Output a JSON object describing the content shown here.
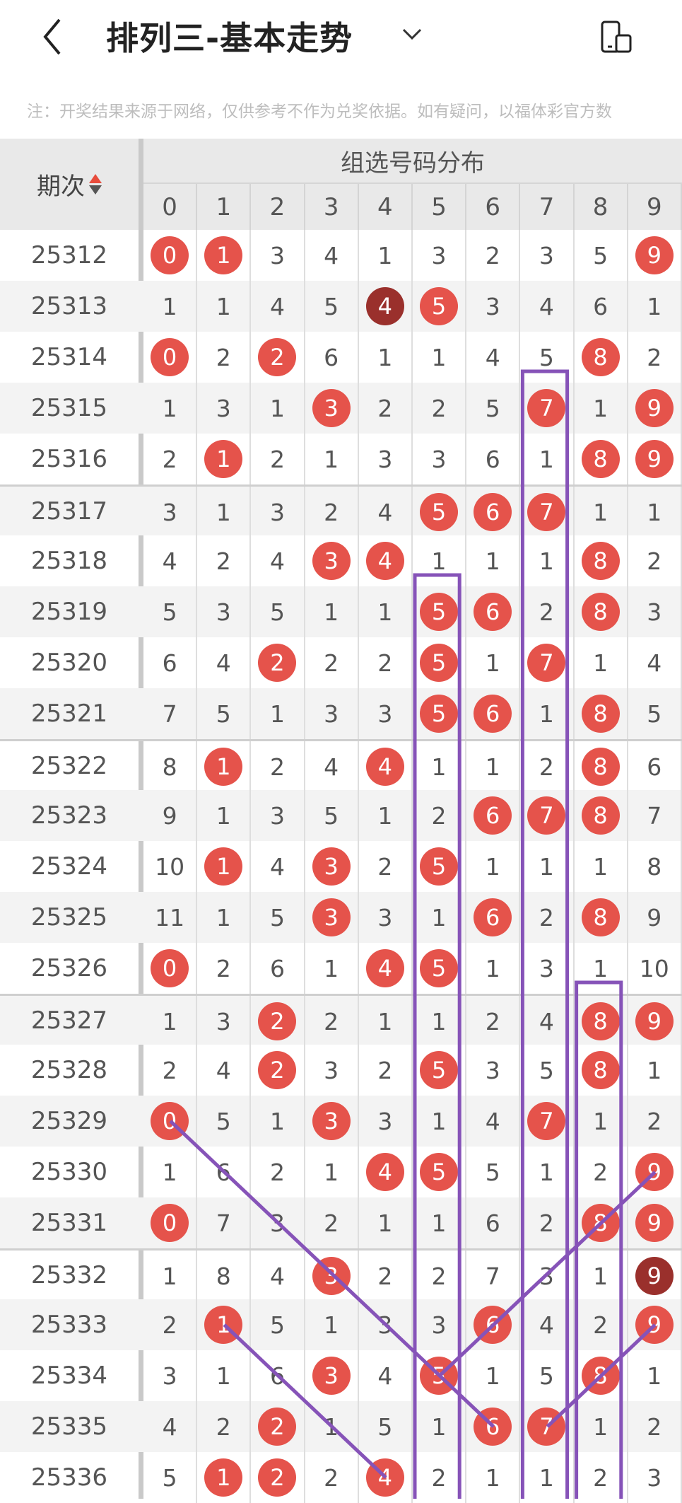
{
  "header": {
    "title": "排列三-基本走势",
    "back_icon": "chevron-left-icon",
    "dropdown_icon": "chevron-down-icon",
    "device_icon": "device-switch-icon"
  },
  "note": "注：开奖结果来源于网络，仅供参考不作为兑奖依据。如有疑问，以福体彩官方数",
  "table": {
    "issue_header": "期次",
    "group_header": "组选号码分布",
    "digits": [
      "0",
      "1",
      "2",
      "3",
      "4",
      "5",
      "6",
      "7",
      "8",
      "9"
    ],
    "rows": [
      {
        "issue": "25312",
        "cells": [
          "0",
          "1",
          "3",
          "4",
          "1",
          "3",
          "2",
          "3",
          "5",
          "9"
        ],
        "hits": [
          0,
          1,
          9
        ],
        "dark": []
      },
      {
        "issue": "25313",
        "cells": [
          "1",
          "1",
          "4",
          "5",
          "4",
          "5",
          "3",
          "4",
          "6",
          "1"
        ],
        "hits": [
          4,
          5
        ],
        "dark": [
          4
        ]
      },
      {
        "issue": "25314",
        "cells": [
          "0",
          "2",
          "2",
          "6",
          "1",
          "1",
          "4",
          "5",
          "8",
          "2"
        ],
        "hits": [
          0,
          2,
          8
        ],
        "dark": []
      },
      {
        "issue": "25315",
        "cells": [
          "1",
          "3",
          "1",
          "3",
          "2",
          "2",
          "5",
          "7",
          "1",
          "9"
        ],
        "hits": [
          3,
          7,
          9
        ],
        "dark": []
      },
      {
        "issue": "25316",
        "cells": [
          "2",
          "1",
          "2",
          "1",
          "3",
          "3",
          "6",
          "1",
          "8",
          "9"
        ],
        "hits": [
          1,
          8,
          9
        ],
        "dark": []
      },
      {
        "issue": "25317",
        "cells": [
          "3",
          "1",
          "3",
          "2",
          "4",
          "5",
          "6",
          "7",
          "1",
          "1"
        ],
        "hits": [
          5,
          6,
          7
        ],
        "dark": []
      },
      {
        "issue": "25318",
        "cells": [
          "4",
          "2",
          "4",
          "3",
          "4",
          "1",
          "1",
          "1",
          "8",
          "2"
        ],
        "hits": [
          3,
          4,
          8
        ],
        "dark": []
      },
      {
        "issue": "25319",
        "cells": [
          "5",
          "3",
          "5",
          "1",
          "1",
          "5",
          "6",
          "2",
          "8",
          "3"
        ],
        "hits": [
          5,
          6,
          8
        ],
        "dark": []
      },
      {
        "issue": "25320",
        "cells": [
          "6",
          "4",
          "2",
          "2",
          "2",
          "5",
          "1",
          "7",
          "1",
          "4"
        ],
        "hits": [
          2,
          5,
          7
        ],
        "dark": []
      },
      {
        "issue": "25321",
        "cells": [
          "7",
          "5",
          "1",
          "3",
          "3",
          "5",
          "6",
          "1",
          "8",
          "5"
        ],
        "hits": [
          5,
          6,
          8
        ],
        "dark": []
      },
      {
        "issue": "25322",
        "cells": [
          "8",
          "1",
          "2",
          "4",
          "4",
          "1",
          "1",
          "2",
          "8",
          "6"
        ],
        "hits": [
          1,
          4,
          8
        ],
        "dark": []
      },
      {
        "issue": "25323",
        "cells": [
          "9",
          "1",
          "3",
          "5",
          "1",
          "2",
          "6",
          "7",
          "8",
          "7"
        ],
        "hits": [
          6,
          7,
          8
        ],
        "dark": []
      },
      {
        "issue": "25324",
        "cells": [
          "10",
          "1",
          "4",
          "3",
          "2",
          "5",
          "1",
          "1",
          "1",
          "8"
        ],
        "hits": [
          1,
          3,
          5
        ],
        "dark": []
      },
      {
        "issue": "25325",
        "cells": [
          "11",
          "1",
          "5",
          "3",
          "3",
          "1",
          "6",
          "2",
          "8",
          "9"
        ],
        "hits": [
          3,
          6,
          8
        ],
        "dark": []
      },
      {
        "issue": "25326",
        "cells": [
          "0",
          "2",
          "6",
          "1",
          "4",
          "5",
          "1",
          "3",
          "1",
          "10"
        ],
        "hits": [
          0,
          4,
          5
        ],
        "dark": []
      },
      {
        "issue": "25327",
        "cells": [
          "1",
          "3",
          "2",
          "2",
          "1",
          "1",
          "2",
          "4",
          "8",
          "9"
        ],
        "hits": [
          2,
          8,
          9
        ],
        "dark": []
      },
      {
        "issue": "25328",
        "cells": [
          "2",
          "4",
          "2",
          "3",
          "2",
          "5",
          "3",
          "5",
          "8",
          "1"
        ],
        "hits": [
          2,
          5,
          8
        ],
        "dark": []
      },
      {
        "issue": "25329",
        "cells": [
          "0",
          "5",
          "1",
          "3",
          "3",
          "1",
          "4",
          "7",
          "1",
          "2"
        ],
        "hits": [
          0,
          3,
          7
        ],
        "dark": []
      },
      {
        "issue": "25330",
        "cells": [
          "1",
          "6",
          "2",
          "1",
          "4",
          "5",
          "5",
          "1",
          "2",
          "9"
        ],
        "hits": [
          4,
          5,
          9
        ],
        "dark": []
      },
      {
        "issue": "25331",
        "cells": [
          "0",
          "7",
          "3",
          "2",
          "1",
          "1",
          "6",
          "2",
          "8",
          "9"
        ],
        "hits": [
          0,
          8,
          9
        ],
        "dark": []
      },
      {
        "issue": "25332",
        "cells": [
          "1",
          "8",
          "4",
          "3",
          "2",
          "2",
          "7",
          "3",
          "1",
          "9"
        ],
        "hits": [
          3,
          9
        ],
        "dark": [
          9
        ]
      },
      {
        "issue": "25333",
        "cells": [
          "2",
          "1",
          "5",
          "1",
          "3",
          "3",
          "6",
          "4",
          "2",
          "9"
        ],
        "hits": [
          1,
          6,
          9
        ],
        "dark": []
      },
      {
        "issue": "25334",
        "cells": [
          "3",
          "1",
          "6",
          "3",
          "4",
          "5",
          "1",
          "5",
          "8",
          "1"
        ],
        "hits": [
          3,
          5,
          8
        ],
        "dark": []
      },
      {
        "issue": "25335",
        "cells": [
          "4",
          "2",
          "2",
          "1",
          "5",
          "1",
          "6",
          "7",
          "1",
          "2"
        ],
        "hits": [
          2,
          6,
          7
        ],
        "dark": []
      },
      {
        "issue": "25336",
        "cells": [
          "5",
          "1",
          "2",
          "2",
          "4",
          "2",
          "1",
          "1",
          "2",
          "3"
        ],
        "hits": [
          1,
          2,
          4
        ],
        "dark": []
      }
    ]
  },
  "annotations": {
    "color": "#8653b8",
    "boxes": [
      {
        "digit": 7,
        "from_issue": "25315"
      },
      {
        "digit": 5,
        "from_issue": "25319"
      },
      {
        "digit": 8,
        "from_issue": "25327"
      }
    ],
    "lines": [
      [
        {
          "digit": 0,
          "issue": "25329"
        },
        {
          "digit": 3,
          "issue": "25332"
        },
        {
          "digit": 5,
          "issue": "25334"
        },
        {
          "digit": 6,
          "issue": "25335"
        }
      ],
      [
        {
          "digit": 5,
          "issue": "25334"
        },
        {
          "digit": 6,
          "issue": "25333"
        },
        {
          "digit": 8,
          "issue": "25331"
        },
        {
          "digit": 9,
          "issue": "25330"
        }
      ],
      [
        {
          "digit": 1,
          "issue": "25333"
        },
        {
          "digit": 4,
          "issue": "25336"
        }
      ],
      [
        {
          "digit": 7,
          "issue": "25335"
        },
        {
          "digit": 8,
          "issue": "25334"
        },
        {
          "digit": 9,
          "issue": "25333"
        }
      ]
    ]
  },
  "colors": {
    "ball": "#e5534b",
    "ball_dark": "#9a302c",
    "header_bg": "#e9e9e9"
  }
}
